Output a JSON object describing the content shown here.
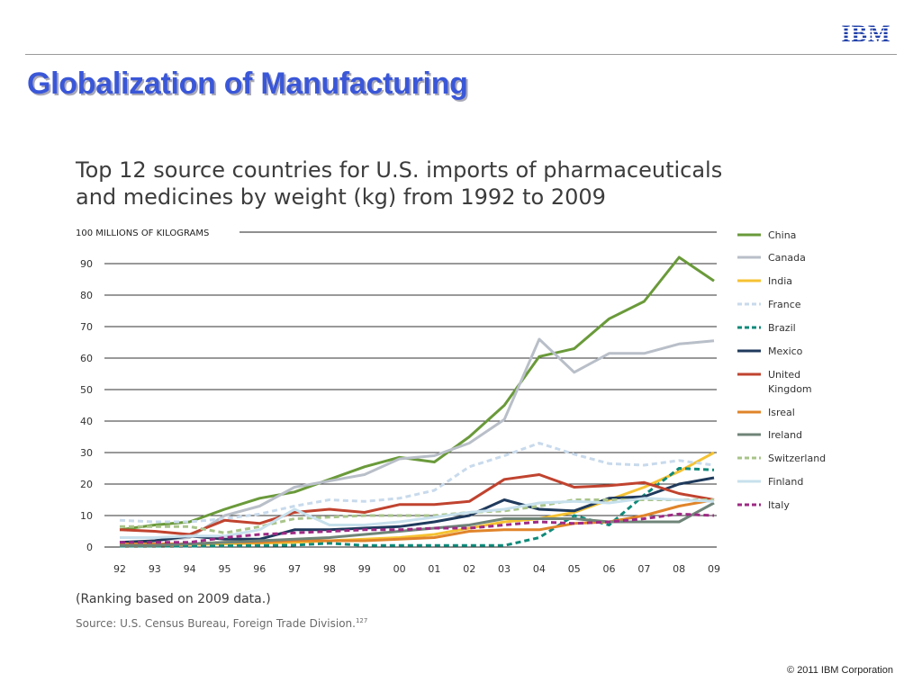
{
  "slide": {
    "logo_text": "IBM",
    "title": "Globalization of Manufacturing",
    "copyright": "© 2011 IBM Corporation",
    "accent_color": "#3a57d8",
    "logo_color": "#1f3fa8"
  },
  "chart_data": {
    "type": "line",
    "title": "Top 12 source countries for U.S. imports of pharmaceuticals and medicines by weight (kg) from 1992 to 2009",
    "ylabel": "100 MILLIONS OF KILOGRAMS",
    "xlabel": "",
    "x": [
      "92",
      "93",
      "94",
      "95",
      "96",
      "97",
      "98",
      "99",
      "00",
      "01",
      "02",
      "03",
      "04",
      "05",
      "06",
      "07",
      "08",
      "09"
    ],
    "yticks": [
      0,
      10,
      20,
      30,
      40,
      50,
      60,
      70,
      80,
      90
    ],
    "ylim": [
      0,
      100
    ],
    "grid": true,
    "legend_position": "right",
    "note": "(Ranking based on 2009 data.)",
    "source": "Source: U.S. Census Bureau, Foreign Trade Division.",
    "source_ref": "127",
    "series": [
      {
        "name": "China",
        "color": "#6a9a3a",
        "dash": "",
        "values": [
          5.5,
          7,
          8,
          12,
          15.5,
          17.5,
          21.5,
          25.5,
          28.5,
          27,
          35,
          45,
          60.5,
          63,
          72.5,
          78,
          92,
          84.5
        ]
      },
      {
        "name": "Canada",
        "color": "#b9bfc8",
        "dash": "",
        "values": [
          1,
          2,
          3,
          10,
          13,
          19,
          21,
          23,
          28,
          29,
          33,
          40.5,
          66,
          55.5,
          61.5,
          61.5,
          64.5,
          65.5
        ]
      },
      {
        "name": "India",
        "color": "#f5c233",
        "dash": "",
        "values": [
          0.5,
          0.5,
          0.8,
          1,
          1.2,
          1.5,
          2,
          2.5,
          3,
          4,
          6,
          8,
          9,
          11,
          15,
          19,
          24,
          30
        ]
      },
      {
        "name": "France",
        "color": "#c8daec",
        "dash": "6,4",
        "values": [
          8.5,
          8,
          8,
          9,
          10.5,
          13,
          15,
          14.5,
          15.5,
          18,
          25.5,
          29,
          33,
          29.5,
          26.5,
          26,
          27.5,
          26
        ]
      },
      {
        "name": "Brazil",
        "color": "#0f8a7a",
        "dash": "6,4",
        "values": [
          0.3,
          0.3,
          0.3,
          0.4,
          0.5,
          0.6,
          1.2,
          0.5,
          0.5,
          0.5,
          0.5,
          0.5,
          3,
          10,
          7,
          16.5,
          25,
          24.5
        ]
      },
      {
        "name": "Mexico",
        "color": "#1f3a5c",
        "dash": "",
        "values": [
          1.5,
          2,
          3.5,
          2.5,
          2.5,
          5.5,
          5.5,
          6,
          6.5,
          8,
          10,
          15,
          12,
          11.5,
          15.5,
          16,
          20,
          22
        ]
      },
      {
        "name": "United Kingdom",
        "color": "#c0432f",
        "dash": "",
        "values": [
          5.5,
          5,
          4,
          8.5,
          7.5,
          11,
          12,
          11,
          13.5,
          13.5,
          14.5,
          21.5,
          23,
          19,
          19.5,
          20.5,
          17,
          15
        ]
      },
      {
        "name": "Isreal",
        "color": "#e0842a",
        "dash": "",
        "values": [
          1,
          1,
          1,
          1.5,
          1.5,
          2,
          2,
          2,
          2.5,
          3,
          5,
          5.5,
          5.5,
          7.5,
          8,
          10,
          13,
          15
        ]
      },
      {
        "name": "Ireland",
        "color": "#6f8478",
        "dash": "",
        "values": [
          0.5,
          0.5,
          1,
          1.5,
          2,
          2.5,
          3,
          4,
          5,
          6,
          7,
          9,
          9,
          9,
          8,
          8,
          8,
          14
        ]
      },
      {
        "name": "Switzerland",
        "color": "#a9c48a",
        "dash": "6,4",
        "values": [
          6.5,
          6.5,
          6.5,
          4.5,
          6.5,
          9,
          9.5,
          10,
          10,
          10,
          11,
          11.5,
          13,
          15,
          15,
          15,
          15,
          15
        ]
      },
      {
        "name": "Finland",
        "color": "#c7e0ec",
        "dash": "",
        "values": [
          3,
          3,
          3.5,
          3.5,
          5.5,
          12,
          7,
          7,
          8,
          9.5,
          11,
          12,
          14,
          14.5,
          14,
          15.5,
          15,
          14.5
        ]
      },
      {
        "name": "Italy",
        "color": "#9e2a84",
        "dash": "6,4",
        "values": [
          1.5,
          1.5,
          1.5,
          3,
          4,
          4.5,
          5,
          5.5,
          5.5,
          6,
          6,
          7,
          8,
          7.5,
          8,
          9,
          10.5,
          10
        ]
      }
    ],
    "legend": [
      {
        "label": "China",
        "series": 0
      },
      {
        "label": "Canada",
        "series": 1
      },
      {
        "label": "India",
        "series": 2
      },
      {
        "label": "France",
        "series": 3
      },
      {
        "label": "Brazil",
        "series": 4
      },
      {
        "label": "Mexico",
        "series": 5
      },
      {
        "label": "United\nKingdom",
        "series": 6
      },
      {
        "label": "Isreal",
        "series": 7
      },
      {
        "label": "Ireland",
        "series": 8
      },
      {
        "label": "Switzerland",
        "series": 9
      },
      {
        "label": "Finland",
        "series": 10
      },
      {
        "label": "Italy",
        "series": 11
      }
    ]
  }
}
